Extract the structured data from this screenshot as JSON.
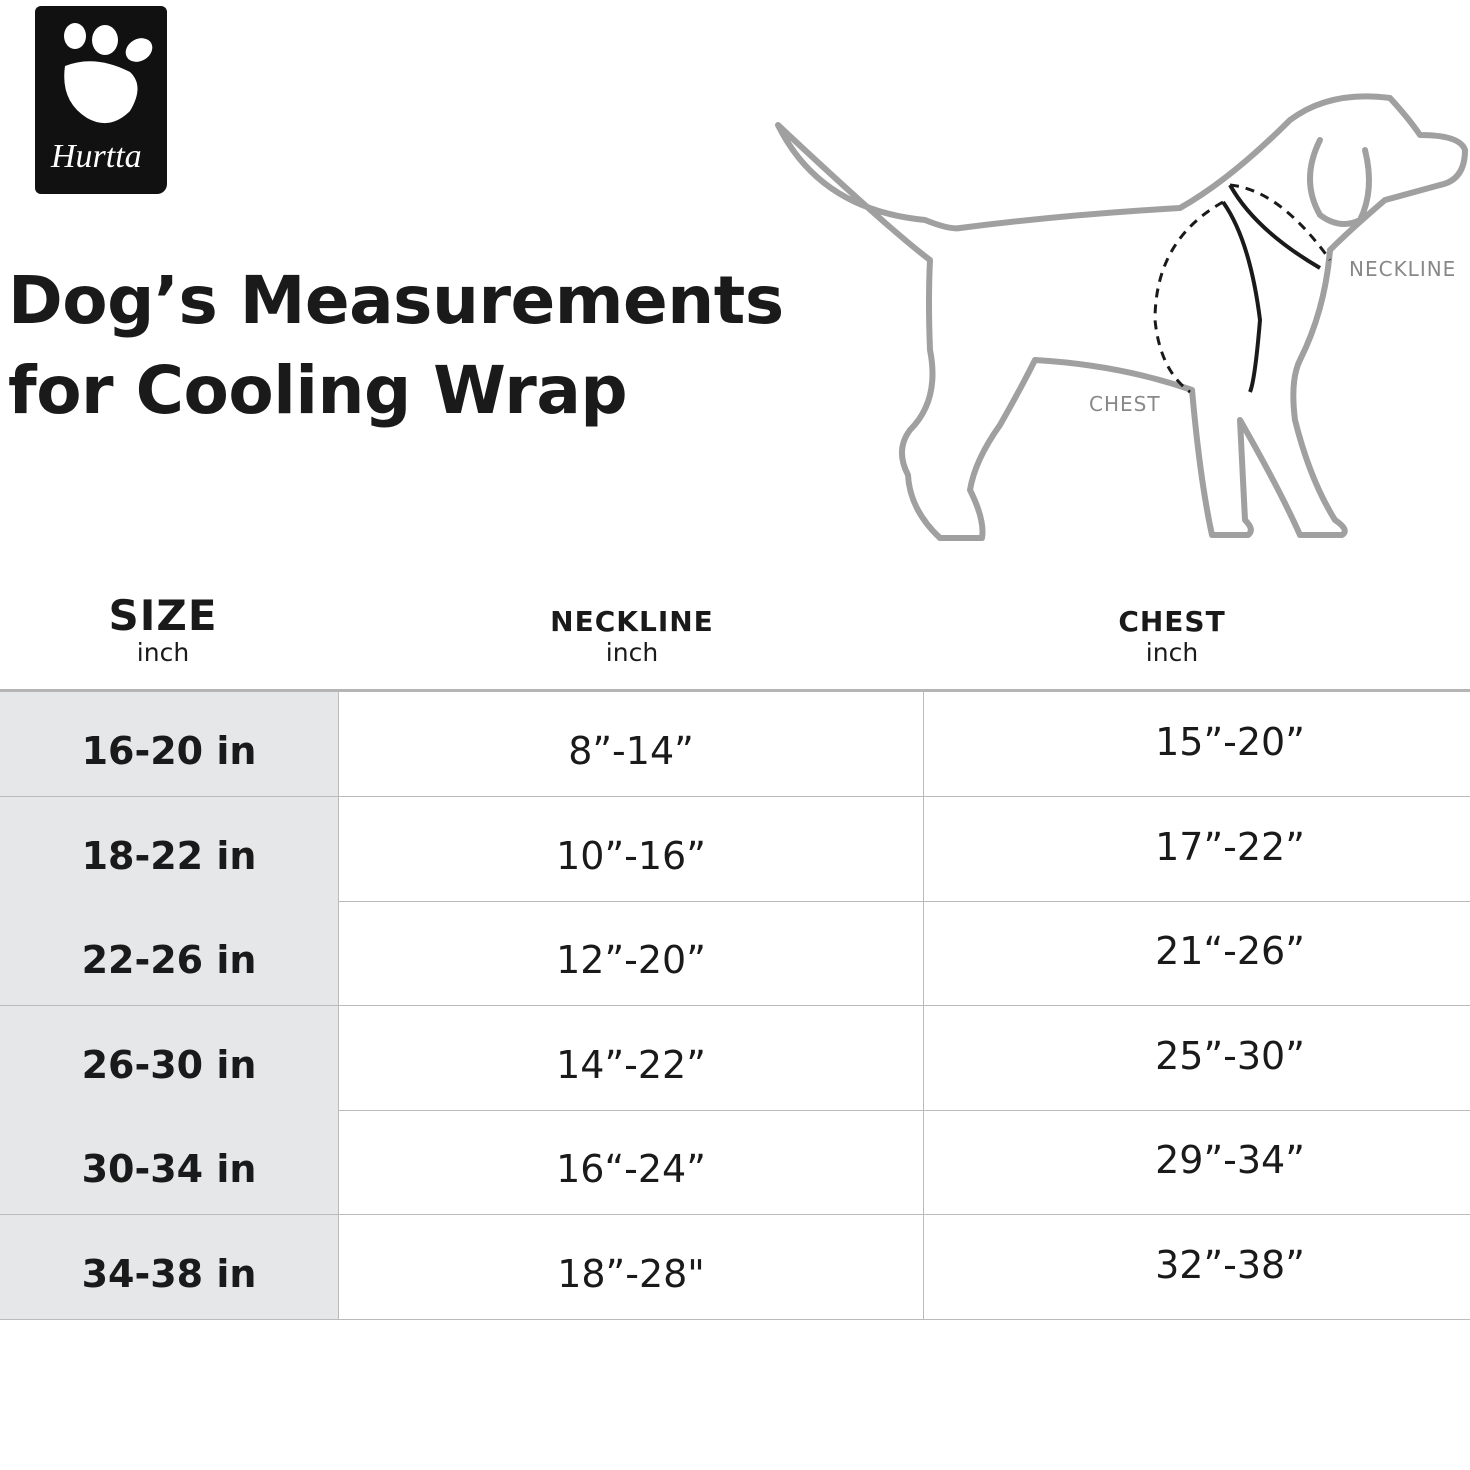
{
  "logo": {
    "text": "Hurtta"
  },
  "header": {
    "title_lines": [
      "Dog’s Measurements",
      "for Cooling Wrap"
    ]
  },
  "diagram": {
    "neckline_label": "NECKLINE",
    "chest_label": "CHEST"
  },
  "table": {
    "columns": [
      {
        "title": "SIZE",
        "unit": "inch"
      },
      {
        "title": "NECKLINE",
        "unit": "inch"
      },
      {
        "title": "CHEST",
        "unit": "inch"
      }
    ],
    "rows": [
      [
        "16-20 in",
        "8”-14”",
        "15”-20”"
      ],
      [
        "18-22 in",
        "10”-16”",
        "17”-22”"
      ],
      [
        "22-26 in",
        "12”-20”",
        "21“-26”"
      ],
      [
        "26-30 in",
        "14”-22”",
        "25”-30”"
      ],
      [
        "30-34 in",
        "16“-24”",
        "29”-34”"
      ],
      [
        "34-38 in",
        "18”-28\"",
        "32”-38”"
      ]
    ]
  }
}
